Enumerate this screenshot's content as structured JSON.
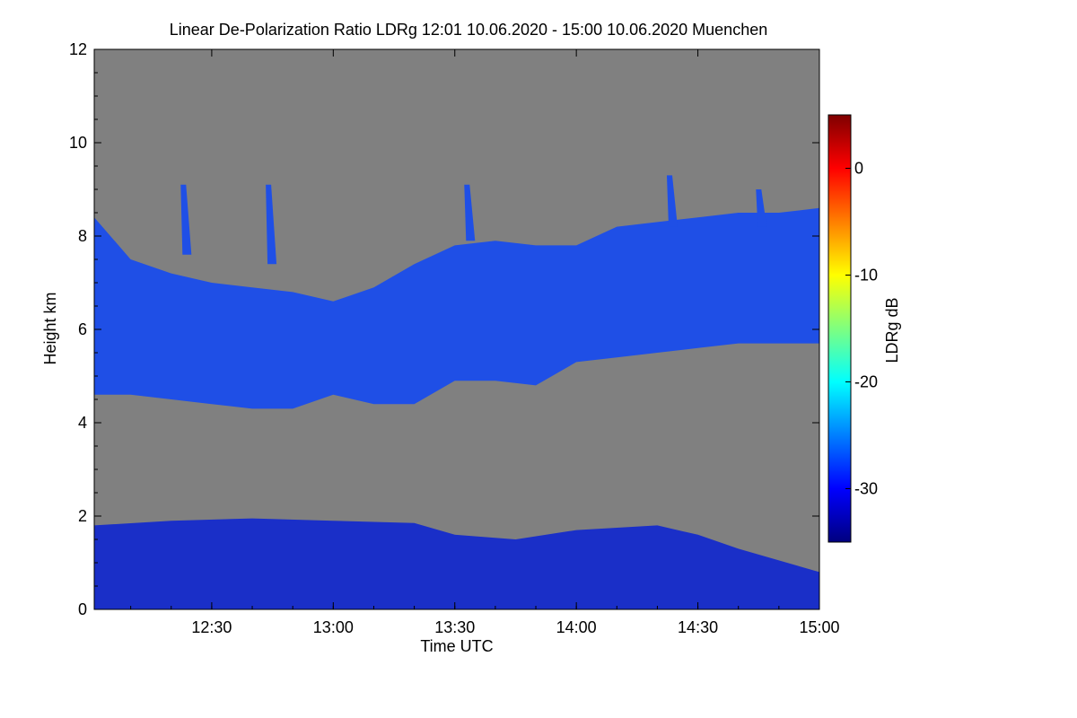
{
  "chart_data": {
    "type": "heatmap",
    "title": "Linear De-Polarization Ratio LDRg   12:01 10.06.2020 - 15:00 10.06.2020 Muenchen",
    "xlabel": "Time UTC",
    "ylabel": "Height km",
    "xlim": [
      "12:01",
      "15:00"
    ],
    "x_ticks": [
      "12:30",
      "13:00",
      "13:30",
      "14:00",
      "14:30",
      "15:00"
    ],
    "ylim": [
      0,
      12
    ],
    "y_ticks": [
      0,
      2,
      4,
      6,
      8,
      10,
      12
    ],
    "background_color": "#808080",
    "colorbar": {
      "label": "LDRg dB",
      "range": [
        -35,
        5
      ],
      "ticks": [
        0,
        -10,
        -20,
        -30
      ],
      "colormap": [
        "#00007f",
        "#0000ff",
        "#007fff",
        "#00ffff",
        "#7fff7f",
        "#ffff00",
        "#ff7f00",
        "#ff0000",
        "#7f0000"
      ]
    },
    "layers": [
      {
        "name": "upper_cloud",
        "value_db": -31,
        "color": "#1f4fe6",
        "top_km": [
          [
            "12:01",
            8.4
          ],
          [
            "12:10",
            7.5
          ],
          [
            "12:20",
            7.2
          ],
          [
            "12:30",
            7.0
          ],
          [
            "12:40",
            6.9
          ],
          [
            "12:50",
            6.8
          ],
          [
            "13:00",
            6.6
          ],
          [
            "13:10",
            6.9
          ],
          [
            "13:20",
            7.4
          ],
          [
            "13:30",
            7.8
          ],
          [
            "13:40",
            7.9
          ],
          [
            "13:50",
            7.8
          ],
          [
            "14:00",
            7.8
          ],
          [
            "14:10",
            8.2
          ],
          [
            "14:20",
            8.3
          ],
          [
            "14:30",
            8.4
          ],
          [
            "14:40",
            8.5
          ],
          [
            "14:50",
            8.5
          ],
          [
            "15:00",
            8.6
          ]
        ],
        "base_km": [
          [
            "12:01",
            4.6
          ],
          [
            "12:10",
            4.6
          ],
          [
            "12:20",
            4.5
          ],
          [
            "12:30",
            4.4
          ],
          [
            "12:40",
            4.3
          ],
          [
            "12:50",
            4.3
          ],
          [
            "13:00",
            4.6
          ],
          [
            "13:10",
            4.4
          ],
          [
            "13:20",
            4.4
          ],
          [
            "13:30",
            4.9
          ],
          [
            "13:40",
            4.9
          ],
          [
            "13:50",
            4.8
          ],
          [
            "14:00",
            5.3
          ],
          [
            "14:10",
            5.4
          ],
          [
            "14:20",
            5.5
          ],
          [
            "14:30",
            5.6
          ],
          [
            "14:40",
            5.7
          ],
          [
            "14:50",
            5.7
          ],
          [
            "15:00",
            5.7
          ]
        ]
      },
      {
        "name": "boundary_layer",
        "value_db": -33,
        "color": "#1a2fc8",
        "top_km": [
          [
            "12:01",
            1.8
          ],
          [
            "12:20",
            1.9
          ],
          [
            "12:40",
            1.95
          ],
          [
            "13:00",
            1.9
          ],
          [
            "13:20",
            1.85
          ],
          [
            "13:30",
            1.6
          ],
          [
            "13:45",
            1.5
          ],
          [
            "14:00",
            1.7
          ],
          [
            "14:20",
            1.8
          ],
          [
            "14:30",
            1.6
          ],
          [
            "14:40",
            1.3
          ],
          [
            "15:00",
            0.8
          ]
        ],
        "base_km": [
          [
            "12:01",
            0.0
          ],
          [
            "15:00",
            0.0
          ]
        ]
      }
    ],
    "fall_streaks": [
      {
        "time": "12:23",
        "from_km": 9.1,
        "to_km": 7.6
      },
      {
        "time": "12:44",
        "from_km": 9.1,
        "to_km": 7.4
      },
      {
        "time": "13:33",
        "from_km": 9.1,
        "to_km": 7.9
      },
      {
        "time": "14:23",
        "from_km": 9.3,
        "to_km": 8.2
      },
      {
        "time": "14:45",
        "from_km": 9.0,
        "to_km": 8.2
      }
    ]
  }
}
